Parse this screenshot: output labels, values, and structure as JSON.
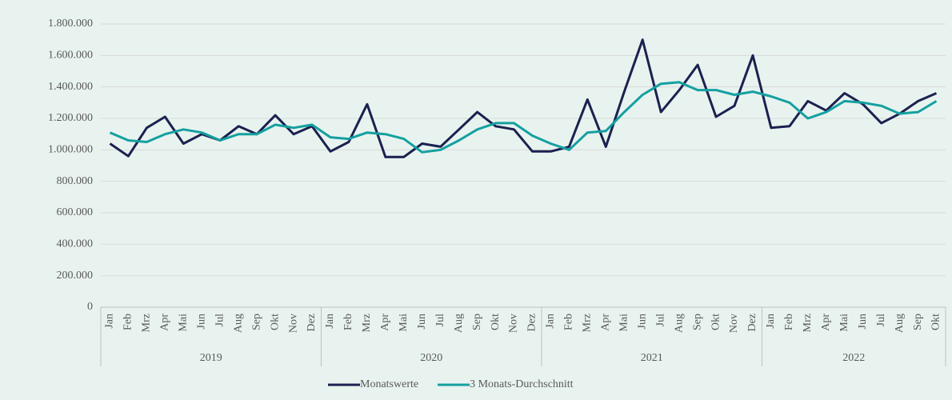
{
  "chart_data": {
    "type": "line",
    "categories": [
      "Jan",
      "Feb",
      "Mrz",
      "Apr",
      "Mai",
      "Jun",
      "Jul",
      "Aug",
      "Sep",
      "Okt",
      "Nov",
      "Dez",
      "Jan",
      "Feb",
      "Mrz",
      "Apr",
      "Mai",
      "Jun",
      "Jul",
      "Aug",
      "Sep",
      "Okt",
      "Nov",
      "Dez",
      "Jan",
      "Feb",
      "Mrz",
      "Apr",
      "Mai",
      "Jun",
      "Jul",
      "Aug",
      "Sep",
      "Okt",
      "Nov",
      "Dez",
      "Jan",
      "Feb",
      "Mrz",
      "Apr",
      "Mai",
      "Jun",
      "Jul",
      "Aug",
      "Sep",
      "Okt"
    ],
    "years": [
      "2019",
      "2020",
      "2021",
      "2022"
    ],
    "series": [
      {
        "name": "Monatswerte",
        "color": "#1b2150",
        "values": [
          1040000,
          960000,
          1140000,
          1210000,
          1040000,
          1100000,
          1060000,
          1150000,
          1100000,
          1220000,
          1100000,
          1150000,
          990000,
          1050000,
          1290000,
          955000,
          955000,
          1040000,
          1020000,
          1130000,
          1240000,
          1150000,
          1130000,
          990000,
          990000,
          1020000,
          1320000,
          1020000,
          1370000,
          1700000,
          1240000,
          1380000,
          1540000,
          1210000,
          1280000,
          1600000,
          1140000,
          1150000,
          1310000,
          1250000,
          1360000,
          1290000,
          1170000,
          1230000,
          1310000,
          1360000
        ]
      },
      {
        "name": "3 Monats-Durchschnitt",
        "color": "#14a0a0",
        "values": [
          1110000,
          1060000,
          1050000,
          1100000,
          1130000,
          1110000,
          1060000,
          1100000,
          1100000,
          1160000,
          1140000,
          1160000,
          1080000,
          1070000,
          1110000,
          1100000,
          1070000,
          985000,
          1000000,
          1060000,
          1130000,
          1170000,
          1170000,
          1090000,
          1040000,
          1000000,
          1110000,
          1120000,
          1240000,
          1350000,
          1420000,
          1430000,
          1380000,
          1380000,
          1350000,
          1370000,
          1340000,
          1300000,
          1200000,
          1240000,
          1310000,
          1300000,
          1280000,
          1230000,
          1240000,
          1310000
        ]
      }
    ],
    "ylim": [
      0,
      1800000
    ],
    "yticks": [
      0,
      {
        "value": 200000,
        "label": "200.000"
      },
      {
        "value": 400000,
        "label": "400.000"
      },
      {
        "value": 600000,
        "label": "600.000"
      },
      {
        "value": 800000,
        "label": "800.000"
      },
      {
        "value": 1000000,
        "label": "1.000.000"
      },
      {
        "value": 1200000,
        "label": "1.200.000"
      },
      {
        "value": 1400000,
        "label": "1.400.000"
      },
      {
        "value": 1600000,
        "label": "1.600.000"
      },
      {
        "value": 1800000,
        "label": "1.800.000"
      }
    ],
    "grid": true,
    "legend": "bottom"
  }
}
